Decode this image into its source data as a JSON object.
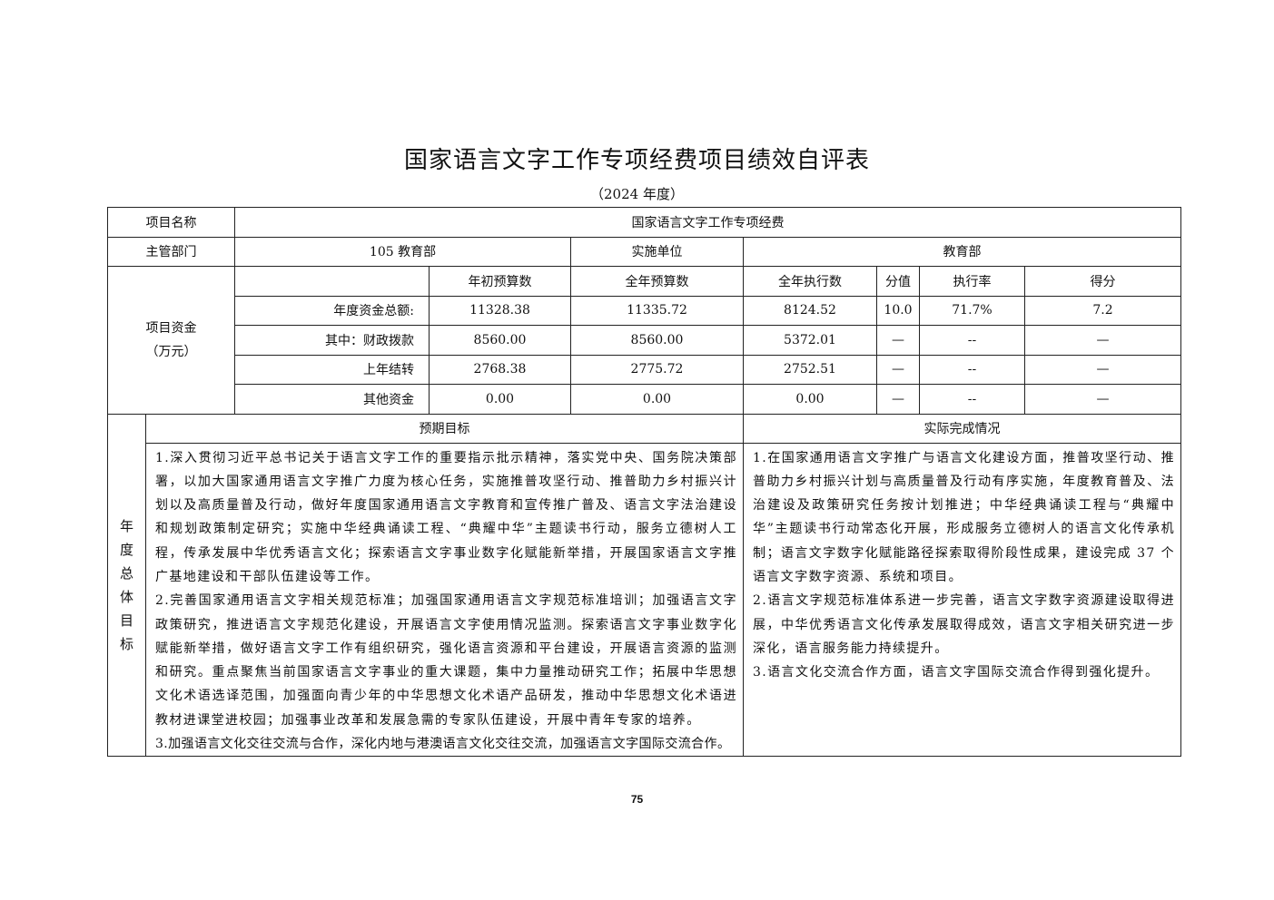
{
  "document": {
    "title": "国家语言文字工作专项经费项目绩效自评表",
    "subtitle": "（2024 年度）",
    "page_number": "75"
  },
  "table": {
    "project_name_label": "项目名称",
    "project_name": "国家语言文字工作专项经费",
    "dept_label": "主管部门",
    "dept": "105  教育部",
    "impl_label": "实施单位",
    "impl": "教育部",
    "funds_label": "项目资金",
    "funds_unit": "（万元）",
    "headers": [
      "年初预算数",
      "全年预算数",
      "全年执行数",
      "分值",
      "执行率",
      "得分"
    ],
    "rows": [
      {
        "label": "年度资金总额:",
        "values": [
          "11328.38",
          "11335.72",
          "8124.52",
          "10.0",
          "71.7%",
          "7.2"
        ]
      },
      {
        "label": "其中：财政拨款",
        "values": [
          "8560.00",
          "8560.00",
          "5372.01",
          "—",
          "--",
          "—"
        ]
      },
      {
        "label": "上年结转",
        "values": [
          "2768.38",
          "2775.72",
          "2752.51",
          "—",
          "--",
          "—"
        ]
      },
      {
        "label": "其他资金",
        "values": [
          "0.00",
          "0.00",
          "0.00",
          "—",
          "--",
          "—"
        ]
      }
    ]
  },
  "goals": {
    "side_label": [
      "年",
      "度",
      "总",
      "体",
      "目",
      "标"
    ],
    "expected_header": "预期目标",
    "actual_header": "实际完成情况",
    "expected": [
      "1.深入贯彻习近平总书记关于语言文字工作的重要指示批示精神，落实党中央、国务院决策部署，以加大国家通用语言文字推广力度为核心任务，实施推普攻坚行动、推普助力乡村振兴计划以及高质量普及行动，做好年度国家通用语言文字教育和宣传推广普及、语言文字法治建设和规划政策制定研究；实施中华经典诵读工程、“典耀中华”主题读书行动，服务立德树人工程，传承发展中华优秀语言文化；探索语言文字事业数字化赋能新举措，开展国家语言文字推广基地建设和干部队伍建设等工作。",
      "2.完善国家通用语言文字相关规范标准；加强国家通用语言文字规范标准培训；加强语言文字政策研究，推进语言文字规范化建设，开展语言文字使用情况监测。探索语言文字事业数字化赋能新举措，做好语言文字工作有组织研究，强化语言资源和平台建设，开展语言资源的监测和研究。重点聚焦当前国家语言文字事业的重大课题，集中力量推动研究工作；拓展中华思想文化术语选译范围，加强面向青少年的中华思想文化术语产品研发，推动中华思想文化术语进教材进课堂进校园；加强事业改革和发展急需的专家队伍建设，开展中青年专家的培养。",
      "3.加强语言文化交往交流与合作，深化内地与港澳语言文化交往交流，加强语言文字国际交流合作。"
    ],
    "actual": [
      "1.在国家通用语言文字推广与语言文化建设方面，推普攻坚行动、推普助力乡村振兴计划与高质量普及行动有序实施，年度教育普及、法治建设及政策研究任务按计划推进；中华经典诵读工程与“典耀中华”主题读书行动常态化开展，形成服务立德树人的语言文化传承机制；语言文字数字化赋能路径探索取得阶段性成果，建设完成 37 个语言文字数字资源、系统和项目。",
      "2.语言文字规范标准体系进一步完善，语言文字数字资源建设取得进展，中华优秀语言文化传承发展取得成效，语言文字相关研究进一步深化，语言服务能力持续提升。",
      "3.语言文化交流合作方面，语言文字国际交流合作得到强化提升。"
    ]
  }
}
